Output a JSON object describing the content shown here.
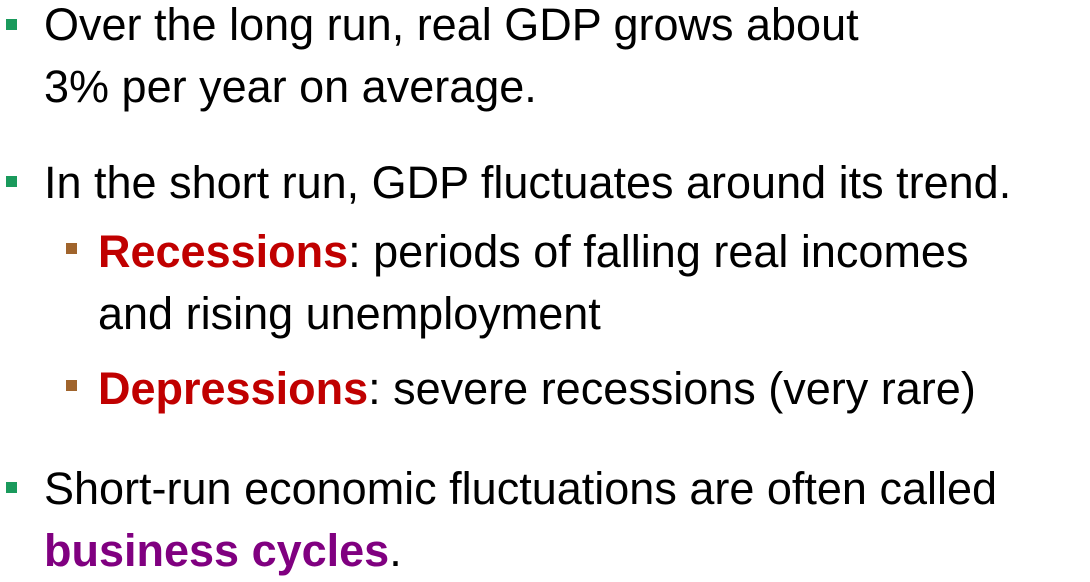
{
  "colors": {
    "bullet_l1": "#1a9a5c",
    "bullet_l2": "#a0642c",
    "term_red": "#c00000",
    "term_purple": "#800080",
    "text": "#000000"
  },
  "bullets": [
    {
      "line1": "Over the long run, real GDP grows about",
      "line2": "3% per year on average."
    },
    {
      "line1": "In the short run, GDP fluctuates around its trend."
    },
    {
      "term": "Recessions",
      "line1_rest": ":  periods of falling real incomes",
      "line2": "and rising unemployment"
    },
    {
      "term": "Depressions",
      "line1_rest": ":  severe recessions (very rare)"
    },
    {
      "line1": "Short-run economic fluctuations are often called",
      "term": "business cycles",
      "line2_rest": "."
    }
  ]
}
